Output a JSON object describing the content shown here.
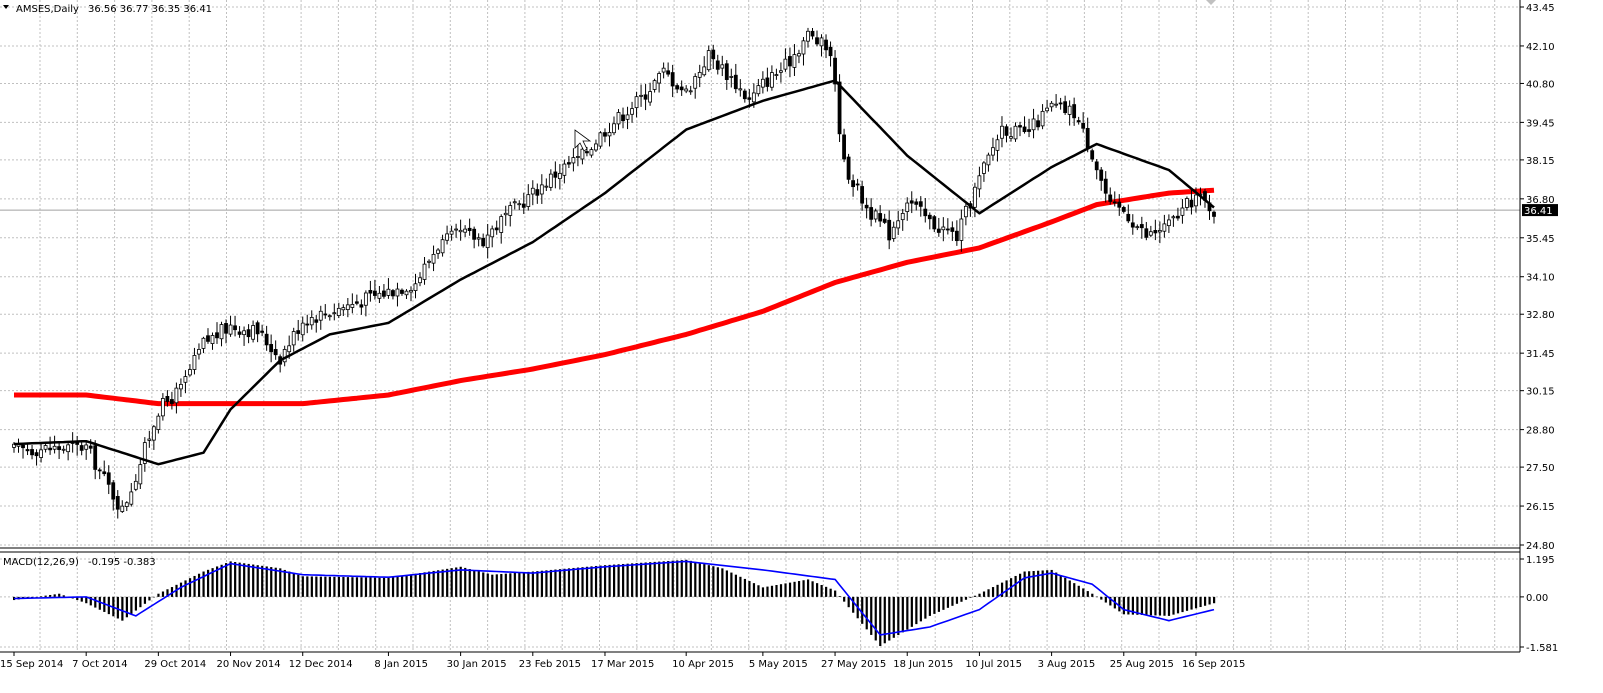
{
  "chart_data": [
    {
      "type": "candlestick",
      "title": "AMSES,Daily",
      "ohlc_label": "36.56 36.77 36.35 36.41",
      "last_price": "36.41",
      "ylim": [
        24.8,
        43.45
      ],
      "y_ticks": [
        "43.45",
        "42.10",
        "40.80",
        "39.45",
        "38.15",
        "36.80",
        "35.45",
        "34.10",
        "32.80",
        "31.45",
        "30.15",
        "28.80",
        "27.50",
        "26.15",
        "24.80"
      ],
      "x_labels": [
        "15 Sep 2014",
        "7 Oct 2014",
        "29 Oct 2014",
        "20 Nov 2014",
        "12 Dec 2014",
        "8 Jan 2015",
        "30 Jan 2015",
        "23 Feb 2015",
        "17 Mar 2015",
        "10 Apr 2015",
        "5 May 2015",
        "27 May 2015",
        "18 Jun 2015",
        "10 Jul 2015",
        "3 Aug 2015",
        "25 Aug 2015",
        "16 Sep 2015"
      ],
      "anchors": [
        [
          "15 Sep 2014",
          28.1
        ],
        [
          "7 Oct 2014",
          28.2
        ],
        [
          "17 Oct 2014",
          26.0
        ],
        [
          "22 Oct 2014",
          27.2
        ],
        [
          "29 Oct 2014",
          29.5
        ],
        [
          "5 Nov 2014",
          30.2
        ],
        [
          "12 Nov 2014",
          31.8
        ],
        [
          "20 Nov 2014",
          32.4
        ],
        [
          "28 Nov 2014",
          32.2
        ],
        [
          "5 Dec 2014",
          31.3
        ],
        [
          "12 Dec 2014",
          32.6
        ],
        [
          "22 Dec 2014",
          32.9
        ],
        [
          "8 Jan 2015",
          33.6
        ],
        [
          "16 Jan 2015",
          33.9
        ],
        [
          "23 Jan 2015",
          35.2
        ],
        [
          "30 Jan 2015",
          35.6
        ],
        [
          "6 Feb 2015",
          35.4
        ],
        [
          "13 Feb 2015",
          36.2
        ],
        [
          "23 Feb 2015",
          37.0
        ],
        [
          "3 Mar 2015",
          37.8
        ],
        [
          "10 Mar 2015",
          38.3
        ],
        [
          "17 Mar 2015",
          39.2
        ],
        [
          "27 Mar 2015",
          40.3
        ],
        [
          "3 Apr 2015",
          41.2
        ],
        [
          "10 Apr 2015",
          40.5
        ],
        [
          "17 Apr 2015",
          41.8
        ],
        [
          "24 Apr 2015",
          41.0
        ],
        [
          "30 Apr 2015",
          40.2
        ],
        [
          "5 May 2015",
          40.8
        ],
        [
          "12 May 2015",
          41.4
        ],
        [
          "19 May 2015",
          42.5
        ],
        [
          "26 May 2015",
          41.9
        ],
        [
          "29 May 2015",
          38.0
        ],
        [
          "5 Jun 2015",
          36.5
        ],
        [
          "12 Jun 2015",
          35.6
        ],
        [
          "18 Jun 2015",
          36.8
        ],
        [
          "25 Jun 2015",
          36.0
        ],
        [
          "3 Jul 2015",
          35.5
        ],
        [
          "10 Jul 2015",
          37.5
        ],
        [
          "17 Jul 2015",
          39.3
        ],
        [
          "24 Jul 2015",
          39.0
        ],
        [
          "3 Aug 2015",
          40.0
        ],
        [
          "10 Aug 2015",
          39.8
        ],
        [
          "14 Aug 2015",
          38.4
        ],
        [
          "20 Aug 2015",
          36.5
        ],
        [
          "25 Aug 2015",
          36.4
        ],
        [
          "1 Sep 2015",
          35.5
        ],
        [
          "8 Sep 2015",
          35.9
        ],
        [
          "16 Sep 2015",
          36.9
        ],
        [
          "22 Sep 2015",
          36.41
        ]
      ],
      "ma_fast": [
        [
          "15 Sep 2014",
          28.3
        ],
        [
          "7 Oct 2014",
          28.4
        ],
        [
          "29 Oct 2014",
          27.6
        ],
        [
          "12 Nov 2014",
          28.0
        ],
        [
          "20 Nov 2014",
          29.5
        ],
        [
          "5 Dec 2014",
          31.2
        ],
        [
          "22 Dec 2014",
          32.1
        ],
        [
          "8 Jan 2015",
          32.5
        ],
        [
          "30 Jan 2015",
          34.0
        ],
        [
          "23 Feb 2015",
          35.3
        ],
        [
          "17 Mar 2015",
          37.0
        ],
        [
          "10 Apr 2015",
          39.2
        ],
        [
          "5 May 2015",
          40.2
        ],
        [
          "27 May 2015",
          40.9
        ],
        [
          "18 Jun 2015",
          38.3
        ],
        [
          "10 Jul 2015",
          36.3
        ],
        [
          "3 Aug 2015",
          37.9
        ],
        [
          "17 Aug 2015",
          38.7
        ],
        [
          "8 Sep 2015",
          37.8
        ],
        [
          "22 Sep 2015",
          36.5
        ]
      ],
      "ma_slow": [
        [
          "15 Sep 2014",
          30.0
        ],
        [
          "7 Oct 2014",
          30.0
        ],
        [
          "29 Oct 2014",
          29.7
        ],
        [
          "12 Dec 2014",
          29.7
        ],
        [
          "8 Jan 2015",
          30.0
        ],
        [
          "30 Jan 2015",
          30.5
        ],
        [
          "23 Feb 2015",
          30.9
        ],
        [
          "17 Mar 2015",
          31.4
        ],
        [
          "10 Apr 2015",
          32.1
        ],
        [
          "5 May 2015",
          32.9
        ],
        [
          "27 May 2015",
          33.9
        ],
        [
          "18 Jun 2015",
          34.6
        ],
        [
          "10 Jul 2015",
          35.1
        ],
        [
          "3 Aug 2015",
          36.0
        ],
        [
          "17 Aug 2015",
          36.6
        ],
        [
          "8 Sep 2015",
          37.0
        ],
        [
          "22 Sep 2015",
          37.1
        ]
      ],
      "colors": {
        "candles": "#000000",
        "ma_fast": "#000000",
        "ma_slow": "#ff0000",
        "grid": "#c0c0c0"
      }
    },
    {
      "type": "histogram",
      "title": "MACD(12,26,9)",
      "values_label": "-0.195 -0.383",
      "ylim": [
        -1.581,
        1.195
      ],
      "y_ticks": [
        "1.195",
        "0.00",
        "-1.581"
      ],
      "macd": [
        [
          "15 Sep 2014",
          -0.1
        ],
        [
          "29 Sep 2014",
          0.1
        ],
        [
          "7 Oct 2014",
          -0.2
        ],
        [
          "17 Oct 2014",
          -0.75
        ],
        [
          "29 Oct 2014",
          0.1
        ],
        [
          "12 Nov 2014",
          0.8
        ],
        [
          "20 Nov 2014",
          1.12
        ],
        [
          "5 Dec 2014",
          0.9
        ],
        [
          "12 Dec 2014",
          0.65
        ],
        [
          "8 Jan 2015",
          0.6
        ],
        [
          "30 Jan 2015",
          0.95
        ],
        [
          "10 Feb 2015",
          0.7
        ],
        [
          "23 Feb 2015",
          0.8
        ],
        [
          "17 Mar 2015",
          1.0
        ],
        [
          "10 Apr 2015",
          1.17
        ],
        [
          "22 Apr 2015",
          0.9
        ],
        [
          "5 May 2015",
          0.3
        ],
        [
          "19 May 2015",
          0.55
        ],
        [
          "27 May 2015",
          0.2
        ],
        [
          "10 Jun 2015",
          -1.55
        ],
        [
          "25 Jun 2015",
          -0.6
        ],
        [
          "10 Jul 2015",
          0.1
        ],
        [
          "24 Jul 2015",
          0.8
        ],
        [
          "3 Aug 2015",
          0.85
        ],
        [
          "14 Aug 2015",
          0.1
        ],
        [
          "25 Aug 2015",
          -0.55
        ],
        [
          "8 Sep 2015",
          -0.6
        ],
        [
          "22 Sep 2015",
          -0.2
        ]
      ],
      "signal": [
        [
          "15 Sep 2014",
          -0.05
        ],
        [
          "7 Oct 2014",
          0.0
        ],
        [
          "22 Oct 2014",
          -0.6
        ],
        [
          "5 Nov 2014",
          0.3
        ],
        [
          "20 Nov 2014",
          1.05
        ],
        [
          "12 Dec 2014",
          0.7
        ],
        [
          "8 Jan 2015",
          0.62
        ],
        [
          "30 Jan 2015",
          0.85
        ],
        [
          "23 Feb 2015",
          0.75
        ],
        [
          "17 Mar 2015",
          0.95
        ],
        [
          "10 Apr 2015",
          1.12
        ],
        [
          "5 May 2015",
          0.85
        ],
        [
          "27 May 2015",
          0.55
        ],
        [
          "10 Jun 2015",
          -1.2
        ],
        [
          "25 Jun 2015",
          -0.95
        ],
        [
          "10 Jul 2015",
          -0.4
        ],
        [
          "24 Jul 2015",
          0.6
        ],
        [
          "3 Aug 2015",
          0.75
        ],
        [
          "14 Aug 2015",
          0.4
        ],
        [
          "25 Aug 2015",
          -0.4
        ],
        [
          "8 Sep 2015",
          -0.75
        ],
        [
          "22 Sep 2015",
          -0.4
        ]
      ],
      "colors": {
        "histogram": "#000000",
        "signal": "#0000ff"
      }
    }
  ]
}
